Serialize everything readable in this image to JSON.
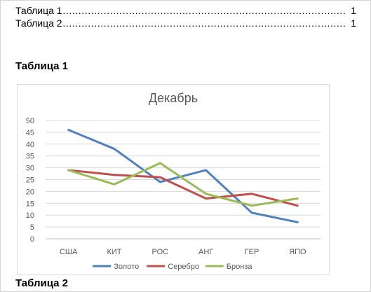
{
  "toc": [
    {
      "label": "Таблица 1",
      "page": "1"
    },
    {
      "label": "Таблица 2",
      "page": "1"
    }
  ],
  "headings": {
    "table1": "Таблица 1",
    "table2": "Таблица 2"
  },
  "chart_data": {
    "type": "line",
    "title": "Декабрь",
    "categories": [
      "США",
      "КИТ",
      "РОС",
      "АНГ",
      "ГЕР",
      "ЯПО"
    ],
    "ylim": [
      0,
      50
    ],
    "yticks": [
      0,
      5,
      10,
      15,
      20,
      25,
      30,
      35,
      40,
      45,
      50
    ],
    "grid": true,
    "legend_position": "bottom",
    "series": [
      {
        "name": "Золото",
        "color": "#4f81bd",
        "values": [
          46,
          38,
          24,
          29,
          11,
          7
        ]
      },
      {
        "name": "Серебро",
        "color": "#c0504d",
        "values": [
          29,
          27,
          26,
          17,
          19,
          14
        ]
      },
      {
        "name": "Бронза",
        "color": "#9bbb59",
        "values": [
          29,
          23,
          32,
          19,
          14,
          17
        ]
      }
    ]
  }
}
